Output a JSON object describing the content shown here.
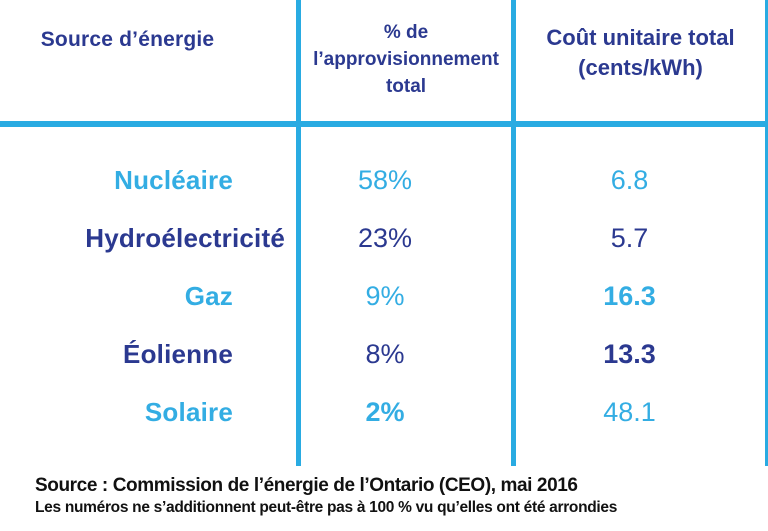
{
  "colors": {
    "line": "#29ABE2",
    "light": "#33ADE3",
    "dark": "#2B3990",
    "footer": "#111111"
  },
  "table": {
    "col1_header": "Source d’énergie",
    "col2_header_lines": [
      "% de",
      "l’approvisionnement",
      "total"
    ],
    "col3_header_lines": [
      "Coût unitaire total",
      "(cents/kWh)"
    ],
    "rows": [
      {
        "source": "Nucléaire",
        "share": "58%",
        "cost": "6.8"
      },
      {
        "source": "Hydroélectricité",
        "share": "23%",
        "cost": "5.7"
      },
      {
        "source": "Gaz",
        "share": "9%",
        "cost": "16.3"
      },
      {
        "source": "Éolienne",
        "share": "8%",
        "cost": "13.3"
      },
      {
        "source": "Solaire",
        "share": "2%",
        "cost": "48.1"
      }
    ]
  },
  "footer": {
    "source_line": "Source : Commission de l’énergie de l’Ontario (CEO), mai 2016",
    "note_line": "Les numéros ne s’additionnent peut-être pas à 100 % vu qu’elles ont été arrondies"
  },
  "chart_data": {
    "type": "table",
    "title": "",
    "columns": [
      "Source d’énergie",
      "% de l’approvisionnement total",
      "Coût unitaire total (cents/kWh)"
    ],
    "rows": [
      [
        "Nucléaire",
        "58%",
        6.8
      ],
      [
        "Hydroélectricité",
        "23%",
        5.7
      ],
      [
        "Gaz",
        "9%",
        16.3
      ],
      [
        "Éolienne",
        "8%",
        13.3
      ],
      [
        "Solaire",
        "2%",
        48.1
      ]
    ],
    "source_note": "Source : Commission de l’énergie de l’Ontario (CEO), mai 2016",
    "footnote": "Les numéros ne s’additionnent peut-être pas à 100 % vu qu’elles ont été arrondies"
  }
}
